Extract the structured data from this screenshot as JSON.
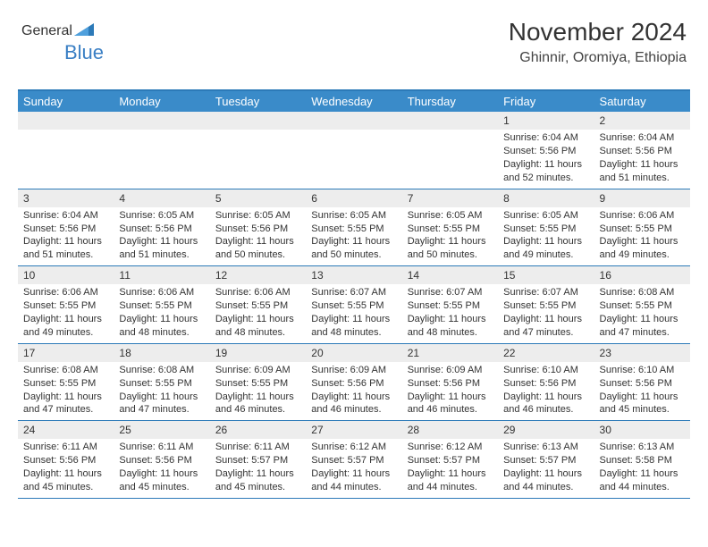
{
  "logo": {
    "text1": "General",
    "text2": "Blue",
    "color1": "#555555",
    "color2": "#3a7fc4"
  },
  "header": {
    "title": "November 2024",
    "location": "Ghinnir, Oromiya, Ethiopia"
  },
  "colors": {
    "header_bg": "#3a8bc9",
    "header_text": "#ffffff",
    "row_border": "#2c7ab8",
    "daynum_bg": "#ededed",
    "text": "#333333"
  },
  "dayNames": [
    "Sunday",
    "Monday",
    "Tuesday",
    "Wednesday",
    "Thursday",
    "Friday",
    "Saturday"
  ],
  "weeks": [
    [
      {
        "n": "",
        "sr": "",
        "ss": "",
        "dl": ""
      },
      {
        "n": "",
        "sr": "",
        "ss": "",
        "dl": ""
      },
      {
        "n": "",
        "sr": "",
        "ss": "",
        "dl": ""
      },
      {
        "n": "",
        "sr": "",
        "ss": "",
        "dl": ""
      },
      {
        "n": "",
        "sr": "",
        "ss": "",
        "dl": ""
      },
      {
        "n": "1",
        "sr": "Sunrise: 6:04 AM",
        "ss": "Sunset: 5:56 PM",
        "dl": "Daylight: 11 hours and 52 minutes."
      },
      {
        "n": "2",
        "sr": "Sunrise: 6:04 AM",
        "ss": "Sunset: 5:56 PM",
        "dl": "Daylight: 11 hours and 51 minutes."
      }
    ],
    [
      {
        "n": "3",
        "sr": "Sunrise: 6:04 AM",
        "ss": "Sunset: 5:56 PM",
        "dl": "Daylight: 11 hours and 51 minutes."
      },
      {
        "n": "4",
        "sr": "Sunrise: 6:05 AM",
        "ss": "Sunset: 5:56 PM",
        "dl": "Daylight: 11 hours and 51 minutes."
      },
      {
        "n": "5",
        "sr": "Sunrise: 6:05 AM",
        "ss": "Sunset: 5:56 PM",
        "dl": "Daylight: 11 hours and 50 minutes."
      },
      {
        "n": "6",
        "sr": "Sunrise: 6:05 AM",
        "ss": "Sunset: 5:55 PM",
        "dl": "Daylight: 11 hours and 50 minutes."
      },
      {
        "n": "7",
        "sr": "Sunrise: 6:05 AM",
        "ss": "Sunset: 5:55 PM",
        "dl": "Daylight: 11 hours and 50 minutes."
      },
      {
        "n": "8",
        "sr": "Sunrise: 6:05 AM",
        "ss": "Sunset: 5:55 PM",
        "dl": "Daylight: 11 hours and 49 minutes."
      },
      {
        "n": "9",
        "sr": "Sunrise: 6:06 AM",
        "ss": "Sunset: 5:55 PM",
        "dl": "Daylight: 11 hours and 49 minutes."
      }
    ],
    [
      {
        "n": "10",
        "sr": "Sunrise: 6:06 AM",
        "ss": "Sunset: 5:55 PM",
        "dl": "Daylight: 11 hours and 49 minutes."
      },
      {
        "n": "11",
        "sr": "Sunrise: 6:06 AM",
        "ss": "Sunset: 5:55 PM",
        "dl": "Daylight: 11 hours and 48 minutes."
      },
      {
        "n": "12",
        "sr": "Sunrise: 6:06 AM",
        "ss": "Sunset: 5:55 PM",
        "dl": "Daylight: 11 hours and 48 minutes."
      },
      {
        "n": "13",
        "sr": "Sunrise: 6:07 AM",
        "ss": "Sunset: 5:55 PM",
        "dl": "Daylight: 11 hours and 48 minutes."
      },
      {
        "n": "14",
        "sr": "Sunrise: 6:07 AM",
        "ss": "Sunset: 5:55 PM",
        "dl": "Daylight: 11 hours and 48 minutes."
      },
      {
        "n": "15",
        "sr": "Sunrise: 6:07 AM",
        "ss": "Sunset: 5:55 PM",
        "dl": "Daylight: 11 hours and 47 minutes."
      },
      {
        "n": "16",
        "sr": "Sunrise: 6:08 AM",
        "ss": "Sunset: 5:55 PM",
        "dl": "Daylight: 11 hours and 47 minutes."
      }
    ],
    [
      {
        "n": "17",
        "sr": "Sunrise: 6:08 AM",
        "ss": "Sunset: 5:55 PM",
        "dl": "Daylight: 11 hours and 47 minutes."
      },
      {
        "n": "18",
        "sr": "Sunrise: 6:08 AM",
        "ss": "Sunset: 5:55 PM",
        "dl": "Daylight: 11 hours and 47 minutes."
      },
      {
        "n": "19",
        "sr": "Sunrise: 6:09 AM",
        "ss": "Sunset: 5:55 PM",
        "dl": "Daylight: 11 hours and 46 minutes."
      },
      {
        "n": "20",
        "sr": "Sunrise: 6:09 AM",
        "ss": "Sunset: 5:56 PM",
        "dl": "Daylight: 11 hours and 46 minutes."
      },
      {
        "n": "21",
        "sr": "Sunrise: 6:09 AM",
        "ss": "Sunset: 5:56 PM",
        "dl": "Daylight: 11 hours and 46 minutes."
      },
      {
        "n": "22",
        "sr": "Sunrise: 6:10 AM",
        "ss": "Sunset: 5:56 PM",
        "dl": "Daylight: 11 hours and 46 minutes."
      },
      {
        "n": "23",
        "sr": "Sunrise: 6:10 AM",
        "ss": "Sunset: 5:56 PM",
        "dl": "Daylight: 11 hours and 45 minutes."
      }
    ],
    [
      {
        "n": "24",
        "sr": "Sunrise: 6:11 AM",
        "ss": "Sunset: 5:56 PM",
        "dl": "Daylight: 11 hours and 45 minutes."
      },
      {
        "n": "25",
        "sr": "Sunrise: 6:11 AM",
        "ss": "Sunset: 5:56 PM",
        "dl": "Daylight: 11 hours and 45 minutes."
      },
      {
        "n": "26",
        "sr": "Sunrise: 6:11 AM",
        "ss": "Sunset: 5:57 PM",
        "dl": "Daylight: 11 hours and 45 minutes."
      },
      {
        "n": "27",
        "sr": "Sunrise: 6:12 AM",
        "ss": "Sunset: 5:57 PM",
        "dl": "Daylight: 11 hours and 44 minutes."
      },
      {
        "n": "28",
        "sr": "Sunrise: 6:12 AM",
        "ss": "Sunset: 5:57 PM",
        "dl": "Daylight: 11 hours and 44 minutes."
      },
      {
        "n": "29",
        "sr": "Sunrise: 6:13 AM",
        "ss": "Sunset: 5:57 PM",
        "dl": "Daylight: 11 hours and 44 minutes."
      },
      {
        "n": "30",
        "sr": "Sunrise: 6:13 AM",
        "ss": "Sunset: 5:58 PM",
        "dl": "Daylight: 11 hours and 44 minutes."
      }
    ]
  ]
}
